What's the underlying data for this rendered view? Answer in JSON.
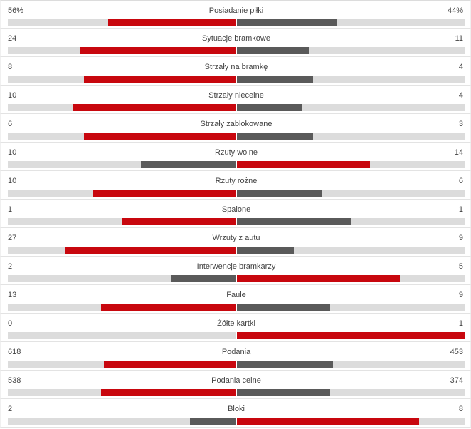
{
  "colors": {
    "winner": "#c8070e",
    "loser": "#5a5a5a",
    "track": "#dcdcdc"
  },
  "stats": [
    {
      "label": "Posiadanie piłki",
      "home": "56%",
      "away": "44%",
      "home_value": 56,
      "away_value": 44
    },
    {
      "label": "Sytuacje bramkowe",
      "home": "24",
      "away": "11",
      "home_value": 24,
      "away_value": 11
    },
    {
      "label": "Strzały na bramkę",
      "home": "8",
      "away": "4",
      "home_value": 8,
      "away_value": 4
    },
    {
      "label": "Strzały niecelne",
      "home": "10",
      "away": "4",
      "home_value": 10,
      "away_value": 4
    },
    {
      "label": "Strzały zablokowane",
      "home": "6",
      "away": "3",
      "home_value": 6,
      "away_value": 3
    },
    {
      "label": "Rzuty wolne",
      "home": "10",
      "away": "14",
      "home_value": 10,
      "away_value": 14
    },
    {
      "label": "Rzuty rożne",
      "home": "10",
      "away": "6",
      "home_value": 10,
      "away_value": 6
    },
    {
      "label": "Spalone",
      "home": "1",
      "away": "1",
      "home_value": 1,
      "away_value": 1
    },
    {
      "label": "Wrzuty z autu",
      "home": "27",
      "away": "9",
      "home_value": 27,
      "away_value": 9
    },
    {
      "label": "Interwencje bramkarzy",
      "home": "2",
      "away": "5",
      "home_value": 2,
      "away_value": 5
    },
    {
      "label": "Faule",
      "home": "13",
      "away": "9",
      "home_value": 13,
      "away_value": 9
    },
    {
      "label": "Żółte kartki",
      "home": "0",
      "away": "1",
      "home_value": 0,
      "away_value": 1
    },
    {
      "label": "Podania",
      "home": "618",
      "away": "453",
      "home_value": 618,
      "away_value": 453
    },
    {
      "label": "Podania celne",
      "home": "538",
      "away": "374",
      "home_value": 538,
      "away_value": 374
    },
    {
      "label": "Bloki",
      "home": "2",
      "away": "8",
      "home_value": 2,
      "away_value": 8
    }
  ]
}
